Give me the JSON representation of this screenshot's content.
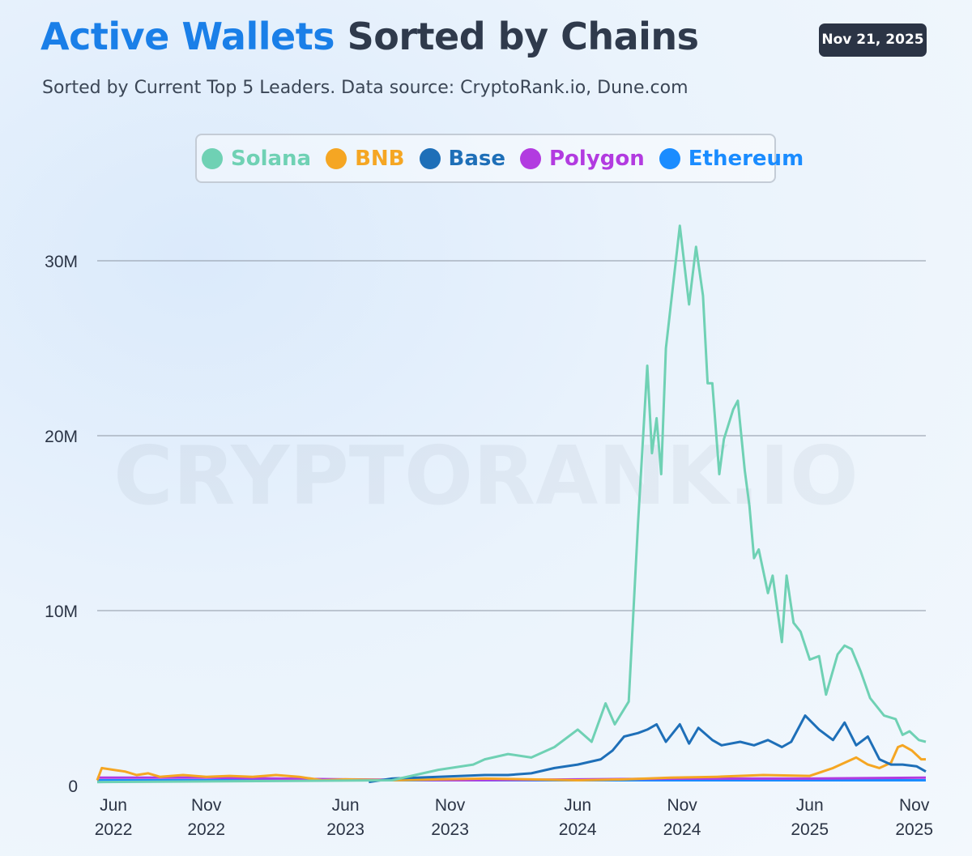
{
  "header": {
    "title_accent": "Active Wallets",
    "title_rest": "Sorted by Chains",
    "subtitle": "Sorted by Current Top 5 Leaders. Data source: CryptoRank.io, Dune.com",
    "date": "Nov 21, 2025"
  },
  "watermark": "CRYPTORANK.IO",
  "chart_data": {
    "type": "line",
    "title": "Active Wallets Sorted by Chains",
    "xlabel": "",
    "ylabel": "",
    "ylim": [
      0,
      32000000
    ],
    "yticks": [
      {
        "value": 0,
        "label": "0"
      },
      {
        "value": 10000000,
        "label": "10M"
      },
      {
        "value": 20000000,
        "label": "20M"
      },
      {
        "value": 30000000,
        "label": "30M"
      }
    ],
    "x_range": [
      2022.33,
      2025.9
    ],
    "xticks": [
      {
        "value": 2022.4,
        "month": "Jun",
        "year": "2022"
      },
      {
        "value": 2022.8,
        "month": "Nov",
        "year": "2022"
      },
      {
        "value": 2023.4,
        "month": "Jun",
        "year": "2023"
      },
      {
        "value": 2023.85,
        "month": "Nov",
        "year": "2023"
      },
      {
        "value": 2024.4,
        "month": "Jun",
        "year": "2024"
      },
      {
        "value": 2024.85,
        "month": "Nov",
        "year": "2024"
      },
      {
        "value": 2025.4,
        "month": "Jun",
        "year": "2025"
      },
      {
        "value": 2025.85,
        "month": "Nov",
        "year": "2025"
      }
    ],
    "legend_position": "top-center",
    "series": [
      {
        "name": "Solana",
        "color": "#6fd1b4",
        "points": [
          [
            2022.33,
            0.2
          ],
          [
            2023.6,
            0.3
          ],
          [
            2023.7,
            0.6
          ],
          [
            2023.8,
            0.9
          ],
          [
            2023.95,
            1.2
          ],
          [
            2024.0,
            1.5
          ],
          [
            2024.1,
            1.8
          ],
          [
            2024.2,
            1.6
          ],
          [
            2024.3,
            2.2
          ],
          [
            2024.4,
            3.2
          ],
          [
            2024.46,
            2.5
          ],
          [
            2024.52,
            4.7
          ],
          [
            2024.56,
            3.5
          ],
          [
            2024.62,
            4.8
          ],
          [
            2024.66,
            15.0
          ],
          [
            2024.7,
            24.0
          ],
          [
            2024.72,
            19.0
          ],
          [
            2024.74,
            21.0
          ],
          [
            2024.76,
            17.8
          ],
          [
            2024.78,
            25.0
          ],
          [
            2024.84,
            32.0
          ],
          [
            2024.88,
            27.5
          ],
          [
            2024.91,
            30.8
          ],
          [
            2024.94,
            28.0
          ],
          [
            2024.96,
            23.0
          ],
          [
            2024.98,
            23.0
          ],
          [
            2025.01,
            17.8
          ],
          [
            2025.03,
            19.8
          ],
          [
            2025.07,
            21.5
          ],
          [
            2025.09,
            22.0
          ],
          [
            2025.12,
            18.0
          ],
          [
            2025.14,
            16.0
          ],
          [
            2025.16,
            13.0
          ],
          [
            2025.18,
            13.5
          ],
          [
            2025.22,
            11.0
          ],
          [
            2025.24,
            12.0
          ],
          [
            2025.28,
            8.2
          ],
          [
            2025.3,
            12.0
          ],
          [
            2025.33,
            9.3
          ],
          [
            2025.36,
            8.8
          ],
          [
            2025.4,
            7.2
          ],
          [
            2025.44,
            7.4
          ],
          [
            2025.47,
            5.2
          ],
          [
            2025.52,
            7.5
          ],
          [
            2025.55,
            8.0
          ],
          [
            2025.58,
            7.8
          ],
          [
            2025.62,
            6.5
          ],
          [
            2025.66,
            5.0
          ],
          [
            2025.72,
            4.0
          ],
          [
            2025.77,
            3.8
          ],
          [
            2025.8,
            2.9
          ],
          [
            2025.83,
            3.1
          ],
          [
            2025.87,
            2.6
          ],
          [
            2025.9,
            2.5
          ]
        ]
      },
      {
        "name": "BNB",
        "color": "#f5a623",
        "points": [
          [
            2022.33,
            0.3
          ],
          [
            2022.35,
            1.0
          ],
          [
            2022.4,
            0.9
          ],
          [
            2022.45,
            0.8
          ],
          [
            2022.5,
            0.6
          ],
          [
            2022.55,
            0.7
          ],
          [
            2022.6,
            0.5
          ],
          [
            2022.7,
            0.6
          ],
          [
            2022.8,
            0.5
          ],
          [
            2022.9,
            0.55
          ],
          [
            2023.0,
            0.5
          ],
          [
            2023.1,
            0.6
          ],
          [
            2023.2,
            0.5
          ],
          [
            2023.3,
            0.3
          ],
          [
            2023.4,
            0.35
          ],
          [
            2023.6,
            0.3
          ],
          [
            2023.8,
            0.35
          ],
          [
            2024.0,
            0.4
          ],
          [
            2024.2,
            0.35
          ],
          [
            2024.4,
            0.3
          ],
          [
            2024.6,
            0.35
          ],
          [
            2024.8,
            0.45
          ],
          [
            2025.0,
            0.5
          ],
          [
            2025.2,
            0.6
          ],
          [
            2025.4,
            0.55
          ],
          [
            2025.5,
            1.0
          ],
          [
            2025.55,
            1.3
          ],
          [
            2025.6,
            1.6
          ],
          [
            2025.65,
            1.2
          ],
          [
            2025.7,
            1.0
          ],
          [
            2025.75,
            1.3
          ],
          [
            2025.78,
            2.2
          ],
          [
            2025.8,
            2.3
          ],
          [
            2025.84,
            2.0
          ],
          [
            2025.88,
            1.5
          ],
          [
            2025.9,
            1.5
          ]
        ]
      },
      {
        "name": "Base",
        "color": "#1e6fb8",
        "points": [
          [
            2023.5,
            0.2
          ],
          [
            2023.6,
            0.4
          ],
          [
            2023.8,
            0.5
          ],
          [
            2024.0,
            0.6
          ],
          [
            2024.1,
            0.6
          ],
          [
            2024.2,
            0.7
          ],
          [
            2024.3,
            1.0
          ],
          [
            2024.4,
            1.2
          ],
          [
            2024.5,
            1.5
          ],
          [
            2024.55,
            2.0
          ],
          [
            2024.6,
            2.8
          ],
          [
            2024.66,
            3.0
          ],
          [
            2024.7,
            3.2
          ],
          [
            2024.74,
            3.5
          ],
          [
            2024.78,
            2.5
          ],
          [
            2024.84,
            3.5
          ],
          [
            2024.88,
            2.4
          ],
          [
            2024.92,
            3.3
          ],
          [
            2024.98,
            2.6
          ],
          [
            2025.02,
            2.3
          ],
          [
            2025.1,
            2.5
          ],
          [
            2025.16,
            2.3
          ],
          [
            2025.22,
            2.6
          ],
          [
            2025.28,
            2.2
          ],
          [
            2025.32,
            2.5
          ],
          [
            2025.38,
            4.0
          ],
          [
            2025.44,
            3.2
          ],
          [
            2025.5,
            2.6
          ],
          [
            2025.55,
            3.6
          ],
          [
            2025.6,
            2.3
          ],
          [
            2025.65,
            2.8
          ],
          [
            2025.7,
            1.5
          ],
          [
            2025.75,
            1.2
          ],
          [
            2025.8,
            1.2
          ],
          [
            2025.86,
            1.1
          ],
          [
            2025.9,
            0.8
          ]
        ]
      },
      {
        "name": "Polygon",
        "color": "#b23be0",
        "points": [
          [
            2022.33,
            0.45
          ],
          [
            2022.8,
            0.45
          ],
          [
            2023.4,
            0.35
          ],
          [
            2023.9,
            0.3
          ],
          [
            2024.4,
            0.35
          ],
          [
            2024.9,
            0.4
          ],
          [
            2025.4,
            0.4
          ],
          [
            2025.9,
            0.45
          ]
        ]
      },
      {
        "name": "Ethereum",
        "color": "#1a8cff",
        "points": [
          [
            2022.33,
            0.3
          ],
          [
            2022.8,
            0.3
          ],
          [
            2023.4,
            0.3
          ],
          [
            2023.9,
            0.3
          ],
          [
            2024.4,
            0.3
          ],
          [
            2024.9,
            0.3
          ],
          [
            2025.4,
            0.3
          ],
          [
            2025.9,
            0.3
          ]
        ]
      }
    ]
  }
}
